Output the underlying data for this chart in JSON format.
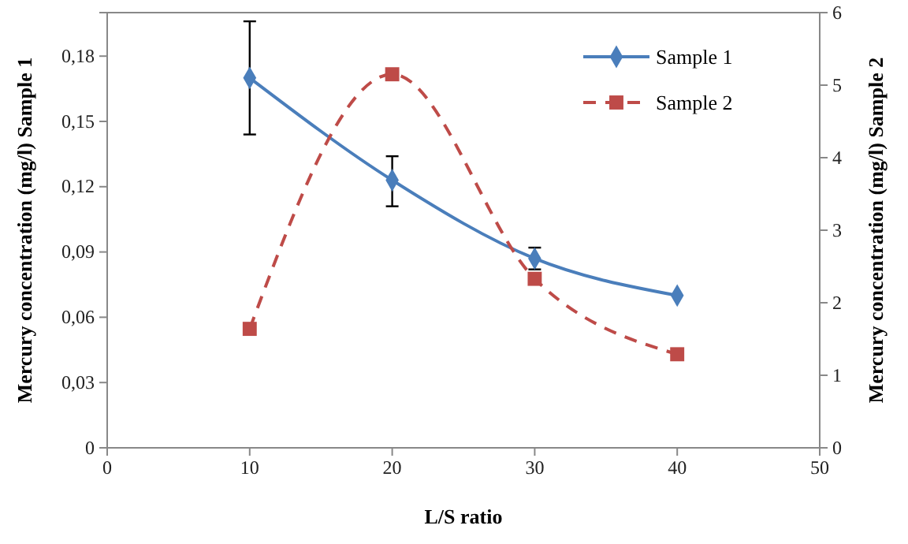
{
  "chart_data": {
    "type": "line",
    "xlabel": "L/S ratio",
    "ylabel": "Mercury concentration (mg/l) Sample 1",
    "y2label": "Mercury concentration (mg/l) Sample 2",
    "x": [
      10,
      20,
      30,
      40
    ],
    "xlim": [
      0,
      50
    ],
    "xticks": [
      0,
      10,
      20,
      30,
      40,
      50
    ],
    "ylim": [
      0,
      0.2
    ],
    "yticks": [
      0,
      {
        "value": 0.03,
        "label": "0,03"
      },
      {
        "value": 0.06,
        "label": "0,06"
      },
      {
        "value": 0.09,
        "label": "0,09"
      },
      {
        "value": 0.12,
        "label": "0,12"
      },
      {
        "value": 0.15,
        "label": "0,15"
      },
      {
        "value": 0.18,
        "label": "0,18"
      }
    ],
    "y2lim": [
      0,
      6
    ],
    "y2ticks": [
      0,
      1,
      2,
      3,
      4,
      5,
      6
    ],
    "grid": false,
    "legend": "top right",
    "series": [
      {
        "name": "Sample 1",
        "color": "#4a7ebb",
        "values": [
          0.17,
          0.123,
          0.087,
          0.07
        ],
        "errors": [
          [
            0.144,
            0.196
          ],
          [
            0.111,
            0.134
          ],
          [
            0.082,
            0.092
          ],
          null
        ],
        "marker": "diamond",
        "line_style": "solid"
      },
      {
        "name": "Sample 2",
        "color": "#be4b48",
        "values": [
          1.64,
          5.15,
          2.33,
          1.29
        ],
        "axis": "y2",
        "marker": "square",
        "line_style": "dashed"
      }
    ]
  }
}
